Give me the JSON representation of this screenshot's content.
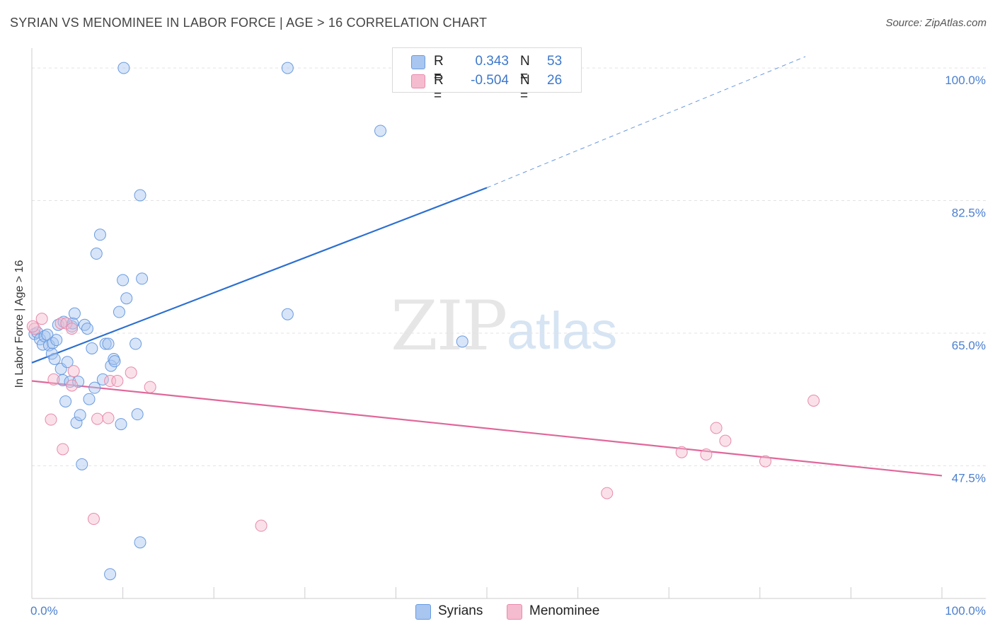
{
  "title": "SYRIAN VS MENOMINEE IN LABOR FORCE | AGE > 16 CORRELATION CHART",
  "source": "Source: ZipAtlas.com",
  "watermark": {
    "zip": "ZIP",
    "atlas": "atlas"
  },
  "legend": {
    "rows": [
      {
        "r_label": "R =",
        "r_value": "0.343",
        "n_label": "N =",
        "n_value": "53"
      },
      {
        "r_label": "R =",
        "r_value": "-0.504",
        "n_label": "N =",
        "n_value": "26"
      }
    ],
    "bottom": [
      {
        "label": "Syrians"
      },
      {
        "label": "Menominee"
      }
    ]
  },
  "colors": {
    "syrians_fill": "#a8c6f0",
    "syrians_stroke": "#6a9be0",
    "syrians_line": "#2b6fd0",
    "menominee_fill": "#f5bccf",
    "menominee_stroke": "#e88aab",
    "menominee_line": "#e0679a",
    "tick_text": "#4a7fcf"
  },
  "chart_data": {
    "type": "scatter",
    "title": "SYRIAN VS MENOMINEE IN LABOR FORCE | AGE > 16 CORRELATION CHART",
    "xlabel": "",
    "ylabel": "In Labor Force | Age > 16",
    "xlim": [
      0,
      100
    ],
    "ylim": [
      30,
      101.5
    ],
    "x_tick_labels": [
      "0.0%",
      "100.0%"
    ],
    "y_ticks": [
      47.5,
      65.0,
      82.5,
      100.0
    ],
    "y_tick_labels": [
      "47.5%",
      "65.0%",
      "82.5%",
      "100.0%"
    ],
    "series": [
      {
        "name": "Syrians",
        "R": 0.343,
        "N": 53,
        "trend": {
          "x0": 0,
          "y0": 61.1,
          "x1": 50,
          "y1": 84.2,
          "dashed_to_x": 85,
          "dashed_to_y": 101.5
        },
        "points": [
          [
            0.3,
            64.9
          ],
          [
            0.6,
            65.1
          ],
          [
            0.9,
            64.2
          ],
          [
            1.2,
            63.5
          ],
          [
            1.4,
            64.6
          ],
          [
            1.7,
            64.8
          ],
          [
            1.9,
            63.4
          ],
          [
            2.2,
            62.3
          ],
          [
            2.3,
            63.7
          ],
          [
            2.5,
            61.6
          ],
          [
            2.7,
            64.1
          ],
          [
            2.9,
            66.1
          ],
          [
            3.2,
            60.3
          ],
          [
            3.4,
            58.8
          ],
          [
            3.5,
            66.5
          ],
          [
            3.7,
            56.0
          ],
          [
            3.9,
            61.2
          ],
          [
            4.2,
            58.6
          ],
          [
            4.4,
            65.9
          ],
          [
            4.5,
            66.3
          ],
          [
            4.7,
            67.6
          ],
          [
            4.9,
            53.2
          ],
          [
            5.1,
            58.6
          ],
          [
            5.3,
            54.2
          ],
          [
            5.5,
            47.7
          ],
          [
            5.8,
            66.1
          ],
          [
            6.1,
            65.6
          ],
          [
            6.3,
            56.3
          ],
          [
            6.6,
            63.0
          ],
          [
            6.9,
            57.8
          ],
          [
            7.1,
            75.5
          ],
          [
            7.5,
            78.0
          ],
          [
            7.8,
            58.9
          ],
          [
            8.1,
            63.6
          ],
          [
            8.4,
            63.6
          ],
          [
            8.7,
            60.7
          ],
          [
            9.0,
            61.6
          ],
          [
            9.1,
            61.3
          ],
          [
            9.6,
            67.8
          ],
          [
            9.8,
            53.0
          ],
          [
            10.0,
            72.0
          ],
          [
            10.1,
            100.0
          ],
          [
            10.4,
            69.6
          ],
          [
            11.4,
            63.6
          ],
          [
            11.6,
            54.3
          ],
          [
            11.9,
            37.4
          ],
          [
            11.9,
            83.2
          ],
          [
            12.1,
            72.2
          ],
          [
            8.6,
            33.2
          ],
          [
            28.1,
            100.0
          ],
          [
            28.1,
            67.5
          ],
          [
            38.3,
            91.7
          ],
          [
            47.3,
            63.9
          ]
        ]
      },
      {
        "name": "Menominee",
        "R": -0.504,
        "N": 26,
        "trend": {
          "x0": 0,
          "y0": 58.7,
          "x1": 100,
          "y1": 46.2
        },
        "points": [
          [
            0.3,
            65.6
          ],
          [
            1.1,
            66.9
          ],
          [
            2.1,
            53.6
          ],
          [
            2.4,
            58.9
          ],
          [
            3.2,
            66.3
          ],
          [
            3.4,
            49.7
          ],
          [
            3.8,
            66.3
          ],
          [
            4.4,
            65.6
          ],
          [
            4.4,
            58.1
          ],
          [
            4.6,
            60.0
          ],
          [
            6.8,
            40.5
          ],
          [
            7.2,
            53.7
          ],
          [
            8.4,
            53.8
          ],
          [
            8.6,
            58.7
          ],
          [
            9.4,
            58.7
          ],
          [
            10.9,
            59.8
          ],
          [
            13.0,
            57.9
          ],
          [
            25.2,
            39.6
          ],
          [
            63.2,
            43.9
          ],
          [
            71.4,
            49.3
          ],
          [
            74.1,
            49.0
          ],
          [
            75.2,
            52.5
          ],
          [
            76.2,
            50.8
          ],
          [
            80.6,
            48.1
          ],
          [
            85.9,
            56.1
          ],
          [
            0.1,
            65.9
          ]
        ]
      }
    ]
  }
}
